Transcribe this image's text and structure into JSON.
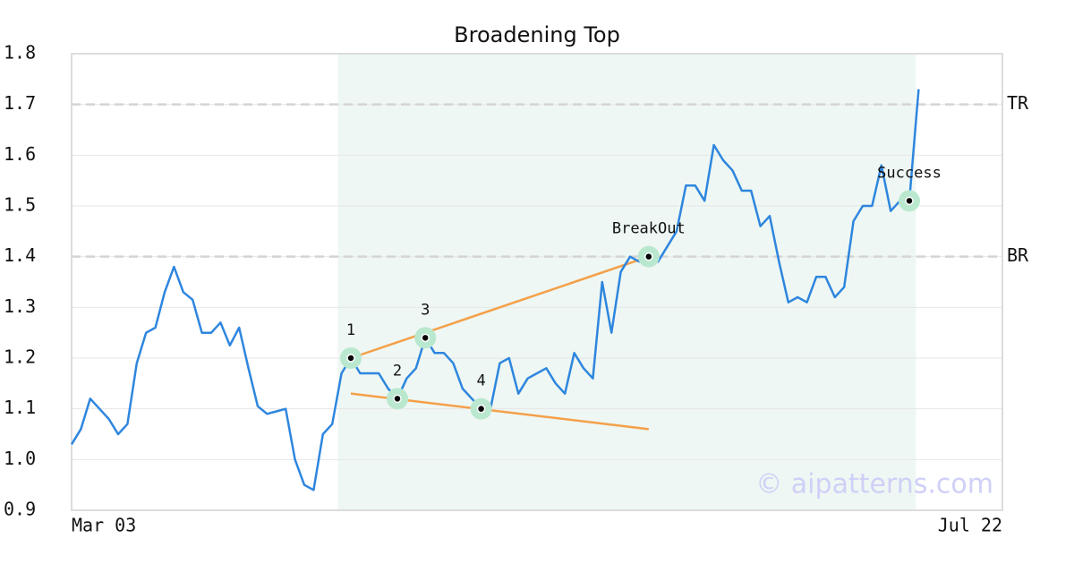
{
  "chart_data": {
    "type": "line",
    "title": "Broadening Top",
    "categories": [
      "Mar 03",
      null,
      null,
      null,
      null,
      null,
      null,
      null,
      null,
      null,
      null,
      null,
      null,
      null,
      null,
      null,
      null,
      null,
      null,
      null,
      null,
      null,
      null,
      null,
      null,
      null,
      null,
      null,
      null,
      null,
      null,
      null,
      null,
      null,
      null,
      null,
      null,
      null,
      null,
      null,
      null,
      null,
      null,
      null,
      null,
      null,
      null,
      null,
      null,
      null,
      null,
      null,
      null,
      null,
      null,
      null,
      null,
      null,
      null,
      null,
      null,
      null,
      null,
      null,
      null,
      null,
      null,
      null,
      null,
      null,
      null,
      null,
      null,
      null,
      null,
      null,
      null,
      null,
      null,
      null,
      null,
      null,
      null,
      null,
      null,
      null,
      null,
      null,
      null,
      null,
      null,
      null,
      null,
      null,
      null,
      null,
      null,
      null,
      null,
      null,
      "Jul 22"
    ],
    "values": [
      1.03,
      1.06,
      1.12,
      1.1,
      1.08,
      1.05,
      1.07,
      1.19,
      1.25,
      1.26,
      1.33,
      1.38,
      1.33,
      1.315,
      1.25,
      1.25,
      1.27,
      1.225,
      1.26,
      1.18,
      1.105,
      1.09,
      1.095,
      1.1,
      1.0,
      0.95,
      0.94,
      1.05,
      1.07,
      1.17,
      1.2,
      1.17,
      1.17,
      1.17,
      1.14,
      1.12,
      1.16,
      1.18,
      1.24,
      1.21,
      1.21,
      1.19,
      1.14,
      1.12,
      1.1,
      1.1,
      1.19,
      1.2,
      1.13,
      1.16,
      1.17,
      1.18,
      1.15,
      1.13,
      1.21,
      1.18,
      1.16,
      1.35,
      1.25,
      1.37,
      1.4,
      1.39,
      1.4,
      1.39,
      1.42,
      1.45,
      1.54,
      1.54,
      1.51,
      1.62,
      1.59,
      1.57,
      1.53,
      1.53,
      1.46,
      1.48,
      1.39,
      1.31,
      1.32,
      1.31,
      1.36,
      1.36,
      1.32,
      1.34,
      1.47,
      1.5,
      1.5,
      1.58,
      1.49,
      1.51,
      1.51,
      1.73,
      null,
      null,
      null,
      null,
      null,
      null,
      null,
      null,
      null
    ],
    "color": "#2e86de",
    "ylim": [
      0.9,
      1.8
    ],
    "yticks": [
      0.9,
      {
        "value": 1,
        "label": "1.0"
      },
      1.1,
      1.2,
      1.3,
      1.4,
      1.5,
      1.6,
      1.7,
      1.8
    ],
    "grid": true,
    "highlight_range": [
      28.6,
      90.7
    ],
    "levels": [
      {
        "label": "TR",
        "value": 1.7
      },
      {
        "label": "BR",
        "value": 1.4
      }
    ],
    "trend_lines": [
      {
        "x": [
          30,
          62
        ],
        "values": [
          1.2,
          1.4
        ],
        "color": "#f4a04a"
      },
      {
        "x": [
          30,
          62
        ],
        "values": [
          1.13,
          1.06
        ],
        "color": "#f4a04a"
      }
    ],
    "markers": [
      {
        "label": "1",
        "x": 30,
        "value": 1.2
      },
      {
        "label": "2",
        "x": 35,
        "value": 1.12
      },
      {
        "label": "3",
        "x": 38,
        "value": 1.24
      },
      {
        "label": "4",
        "x": 44,
        "value": 1.1
      },
      {
        "label": "BreakOut",
        "x": 62,
        "value": 1.4
      },
      {
        "label": "Success",
        "x": 90,
        "value": 1.51
      }
    ],
    "watermark": "© aipatterns.com"
  }
}
